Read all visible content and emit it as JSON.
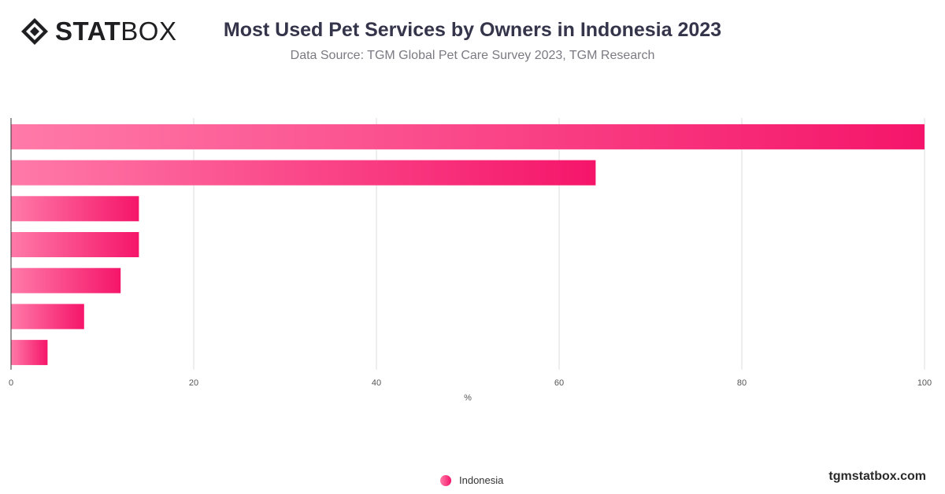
{
  "header": {
    "logo_text_bold": "STAT",
    "logo_text_light": "BOX",
    "title": "Most Used Pet Services by Owners in Indonesia 2023",
    "subtitle": "Data Source: TGM Global Pet Care Survey 2023, TGM Research"
  },
  "footer": {
    "site_url": "tgmstatbox.com"
  },
  "colors": {
    "bar_gradient_start": "#ff7aa8",
    "bar_gradient_end": "#f5156a",
    "grid": "#dddddd",
    "axis": "#333333"
  },
  "chart_data": {
    "type": "bar",
    "orientation": "horizontal",
    "categories": [
      "",
      "",
      "",
      "",
      "",
      "",
      ""
    ],
    "series": [
      {
        "name": "Indonesia",
        "values": [
          100,
          64,
          14,
          14,
          12,
          8,
          4
        ]
      }
    ],
    "xlabel": "%",
    "ylabel": "",
    "xlim": [
      0,
      100
    ],
    "xticks": [
      0,
      20,
      40,
      60,
      80,
      100
    ],
    "grid": true,
    "legend_position": "bottom-center"
  }
}
